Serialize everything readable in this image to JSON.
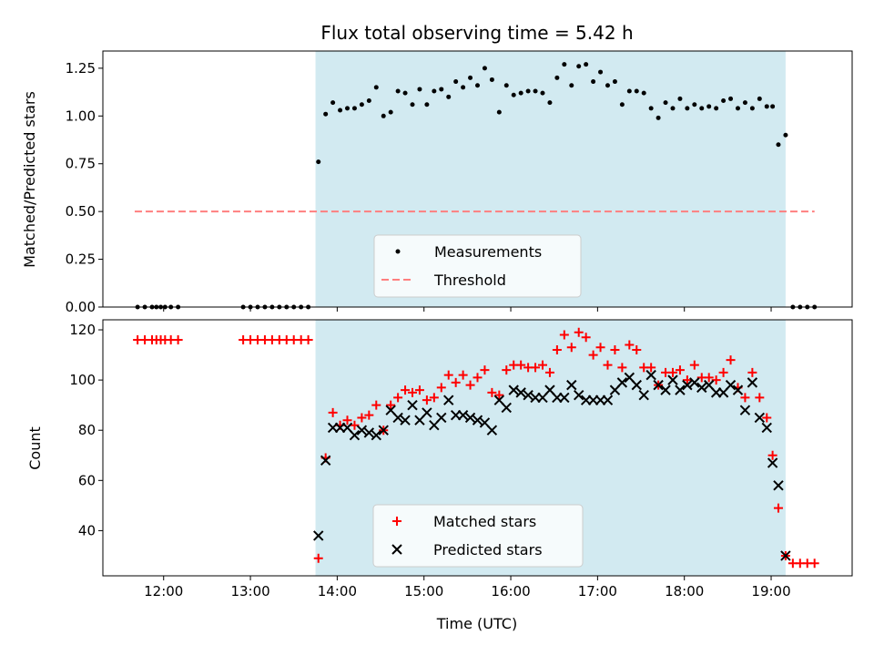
{
  "chart_data": [
    {
      "type": "scatter",
      "title": "Flux total observing time = 5.42 h",
      "xlabel": "",
      "ylabel": "Matched/Predicted stars",
      "xlim": [
        "11:18",
        "19:56"
      ],
      "ylim": [
        0,
        1.34
      ],
      "x_ticks": [
        "12:00",
        "13:00",
        "14:00",
        "15:00",
        "16:00",
        "17:00",
        "18:00",
        "19:00"
      ],
      "y_ticks": [
        "0.00",
        "0.25",
        "0.50",
        "0.75",
        "1.00",
        "1.25"
      ],
      "shaded_region": [
        "13:45",
        "19:10"
      ],
      "shaded_color": "#add8e6",
      "threshold": {
        "name": "Threshold",
        "y": 0.5,
        "x_range": [
          "11:40",
          "19:30"
        ],
        "color": "#ff7f7f",
        "style": "dashed"
      },
      "series": [
        {
          "name": "Measurements",
          "color": "#000000",
          "points": [
            [
              "11:42",
              0
            ],
            [
              "11:47",
              0
            ],
            [
              "11:52",
              0
            ],
            [
              "11:55",
              0
            ],
            [
              "11:58",
              0
            ],
            [
              "12:01",
              0
            ],
            [
              "12:05",
              0
            ],
            [
              "12:10",
              0
            ],
            [
              "12:55",
              0
            ],
            [
              "13:00",
              0
            ],
            [
              "13:05",
              0
            ],
            [
              "13:10",
              0
            ],
            [
              "13:15",
              0
            ],
            [
              "13:20",
              0
            ],
            [
              "13:25",
              0
            ],
            [
              "13:30",
              0
            ],
            [
              "13:35",
              0
            ],
            [
              "13:40",
              0
            ],
            [
              "13:47",
              0.76
            ],
            [
              "13:52",
              1.01
            ],
            [
              "13:57",
              1.07
            ],
            [
              "14:02",
              1.03
            ],
            [
              "14:07",
              1.04
            ],
            [
              "14:12",
              1.04
            ],
            [
              "14:17",
              1.06
            ],
            [
              "14:22",
              1.08
            ],
            [
              "14:27",
              1.15
            ],
            [
              "14:32",
              1.0
            ],
            [
              "14:37",
              1.02
            ],
            [
              "14:42",
              1.13
            ],
            [
              "14:47",
              1.12
            ],
            [
              "14:52",
              1.06
            ],
            [
              "14:57",
              1.14
            ],
            [
              "15:02",
              1.06
            ],
            [
              "15:07",
              1.13
            ],
            [
              "15:12",
              1.14
            ],
            [
              "15:17",
              1.1
            ],
            [
              "15:22",
              1.18
            ],
            [
              "15:27",
              1.15
            ],
            [
              "15:32",
              1.2
            ],
            [
              "15:37",
              1.16
            ],
            [
              "15:42",
              1.25
            ],
            [
              "15:47",
              1.19
            ],
            [
              "15:52",
              1.02
            ],
            [
              "15:57",
              1.16
            ],
            [
              "16:02",
              1.11
            ],
            [
              "16:07",
              1.12
            ],
            [
              "16:12",
              1.13
            ],
            [
              "16:17",
              1.13
            ],
            [
              "16:22",
              1.12
            ],
            [
              "16:27",
              1.07
            ],
            [
              "16:32",
              1.2
            ],
            [
              "16:37",
              1.27
            ],
            [
              "16:42",
              1.16
            ],
            [
              "16:47",
              1.26
            ],
            [
              "16:52",
              1.27
            ],
            [
              "16:57",
              1.18
            ],
            [
              "17:02",
              1.23
            ],
            [
              "17:07",
              1.16
            ],
            [
              "17:12",
              1.18
            ],
            [
              "17:17",
              1.06
            ],
            [
              "17:22",
              1.13
            ],
            [
              "17:27",
              1.13
            ],
            [
              "17:32",
              1.12
            ],
            [
              "17:37",
              1.04
            ],
            [
              "17:42",
              0.99
            ],
            [
              "17:47",
              1.07
            ],
            [
              "17:52",
              1.04
            ],
            [
              "17:57",
              1.09
            ],
            [
              "18:02",
              1.04
            ],
            [
              "18:07",
              1.06
            ],
            [
              "18:12",
              1.04
            ],
            [
              "18:17",
              1.05
            ],
            [
              "18:22",
              1.04
            ],
            [
              "18:27",
              1.08
            ],
            [
              "18:32",
              1.09
            ],
            [
              "18:37",
              1.04
            ],
            [
              "18:42",
              1.07
            ],
            [
              "18:47",
              1.04
            ],
            [
              "18:52",
              1.09
            ],
            [
              "18:57",
              1.05
            ],
            [
              "19:01",
              1.05
            ],
            [
              "19:05",
              0.85
            ],
            [
              "19:10",
              0.9
            ],
            [
              "19:15",
              0
            ],
            [
              "19:20",
              0
            ],
            [
              "19:25",
              0
            ],
            [
              "19:30",
              0
            ]
          ]
        }
      ],
      "legend": {
        "placement": "lower-center",
        "entries": [
          "Measurements",
          "Threshold"
        ]
      }
    },
    {
      "type": "scatter",
      "title": "",
      "xlabel": "Time (UTC)",
      "ylabel": "Count",
      "xlim": [
        "11:18",
        "19:56"
      ],
      "ylim": [
        22,
        124
      ],
      "x_ticks": [
        "12:00",
        "13:00",
        "14:00",
        "15:00",
        "16:00",
        "17:00",
        "18:00",
        "19:00"
      ],
      "y_ticks": [
        "40",
        "60",
        "80",
        "100",
        "120"
      ],
      "shaded_region": [
        "13:45",
        "19:10"
      ],
      "shaded_color": "#add8e6",
      "series": [
        {
          "name": "Matched stars",
          "marker": "plus",
          "color": "#ff0000",
          "points": [
            [
              "11:42",
              116
            ],
            [
              "11:47",
              116
            ],
            [
              "11:52",
              116
            ],
            [
              "11:55",
              116
            ],
            [
              "11:58",
              116
            ],
            [
              "12:01",
              116
            ],
            [
              "12:05",
              116
            ],
            [
              "12:10",
              116
            ],
            [
              "12:55",
              116
            ],
            [
              "13:00",
              116
            ],
            [
              "13:05",
              116
            ],
            [
              "13:10",
              116
            ],
            [
              "13:15",
              116
            ],
            [
              "13:20",
              116
            ],
            [
              "13:25",
              116
            ],
            [
              "13:30",
              116
            ],
            [
              "13:35",
              116
            ],
            [
              "13:40",
              116
            ],
            [
              "13:47",
              29
            ],
            [
              "13:52",
              69
            ],
            [
              "13:57",
              87
            ],
            [
              "14:02",
              82
            ],
            [
              "14:07",
              84
            ],
            [
              "14:12",
              82
            ],
            [
              "14:17",
              85
            ],
            [
              "14:22",
              86
            ],
            [
              "14:27",
              90
            ],
            [
              "14:32",
              80
            ],
            [
              "14:37",
              90
            ],
            [
              "14:42",
              93
            ],
            [
              "14:47",
              96
            ],
            [
              "14:52",
              95
            ],
            [
              "14:57",
              96
            ],
            [
              "15:02",
              92
            ],
            [
              "15:07",
              93
            ],
            [
              "15:12",
              97
            ],
            [
              "15:17",
              102
            ],
            [
              "15:22",
              99
            ],
            [
              "15:27",
              102
            ],
            [
              "15:32",
              98
            ],
            [
              "15:37",
              101
            ],
            [
              "15:42",
              104
            ],
            [
              "15:47",
              95
            ],
            [
              "15:52",
              94
            ],
            [
              "15:57",
              104
            ],
            [
              "16:02",
              106
            ],
            [
              "16:07",
              106
            ],
            [
              "16:12",
              105
            ],
            [
              "16:17",
              105
            ],
            [
              "16:22",
              106
            ],
            [
              "16:27",
              103
            ],
            [
              "16:32",
              112
            ],
            [
              "16:37",
              118
            ],
            [
              "16:42",
              113
            ],
            [
              "16:47",
              119
            ],
            [
              "16:52",
              117
            ],
            [
              "16:57",
              110
            ],
            [
              "17:02",
              113
            ],
            [
              "17:07",
              106
            ],
            [
              "17:12",
              112
            ],
            [
              "17:17",
              105
            ],
            [
              "17:22",
              114
            ],
            [
              "17:27",
              112
            ],
            [
              "17:32",
              105
            ],
            [
              "17:37",
              105
            ],
            [
              "17:42",
              98
            ],
            [
              "17:47",
              103
            ],
            [
              "17:52",
              103
            ],
            [
              "17:57",
              104
            ],
            [
              "18:02",
              100
            ],
            [
              "18:07",
              106
            ],
            [
              "18:12",
              101
            ],
            [
              "18:17",
              101
            ],
            [
              "18:22",
              100
            ],
            [
              "18:27",
              103
            ],
            [
              "18:32",
              108
            ],
            [
              "18:37",
              97
            ],
            [
              "18:42",
              93
            ],
            [
              "18:47",
              103
            ],
            [
              "18:52",
              93
            ],
            [
              "18:57",
              85
            ],
            [
              "19:01",
              70
            ],
            [
              "19:05",
              49
            ],
            [
              "19:10",
              30
            ],
            [
              "19:15",
              27
            ],
            [
              "19:20",
              27
            ],
            [
              "19:25",
              27
            ],
            [
              "19:30",
              27
            ]
          ]
        },
        {
          "name": "Predicted stars",
          "marker": "x",
          "color": "#000000",
          "points": [
            [
              "13:47",
              38
            ],
            [
              "13:52",
              68
            ],
            [
              "13:57",
              81
            ],
            [
              "14:02",
              81
            ],
            [
              "14:07",
              81
            ],
            [
              "14:12",
              78
            ],
            [
              "14:17",
              80
            ],
            [
              "14:22",
              79
            ],
            [
              "14:27",
              78
            ],
            [
              "14:32",
              80
            ],
            [
              "14:37",
              88
            ],
            [
              "14:42",
              85
            ],
            [
              "14:47",
              84
            ],
            [
              "14:52",
              90
            ],
            [
              "14:57",
              84
            ],
            [
              "15:02",
              87
            ],
            [
              "15:07",
              82
            ],
            [
              "15:12",
              85
            ],
            [
              "15:17",
              92
            ],
            [
              "15:22",
              86
            ],
            [
              "15:27",
              86
            ],
            [
              "15:32",
              85
            ],
            [
              "15:37",
              84
            ],
            [
              "15:42",
              83
            ],
            [
              "15:47",
              80
            ],
            [
              "15:52",
              92
            ],
            [
              "15:57",
              89
            ],
            [
              "16:02",
              96
            ],
            [
              "16:07",
              95
            ],
            [
              "16:12",
              94
            ],
            [
              "16:17",
              93
            ],
            [
              "16:22",
              93
            ],
            [
              "16:27",
              96
            ],
            [
              "16:32",
              93
            ],
            [
              "16:37",
              93
            ],
            [
              "16:42",
              98
            ],
            [
              "16:47",
              94
            ],
            [
              "16:52",
              92
            ],
            [
              "16:57",
              92
            ],
            [
              "17:02",
              92
            ],
            [
              "17:07",
              92
            ],
            [
              "17:12",
              96
            ],
            [
              "17:17",
              99
            ],
            [
              "17:22",
              101
            ],
            [
              "17:27",
              98
            ],
            [
              "17:32",
              94
            ],
            [
              "17:37",
              102
            ],
            [
              "17:42",
              98
            ],
            [
              "17:47",
              96
            ],
            [
              "17:52",
              100
            ],
            [
              "17:57",
              96
            ],
            [
              "18:02",
              98
            ],
            [
              "18:07",
              99
            ],
            [
              "18:12",
              97
            ],
            [
              "18:17",
              98
            ],
            [
              "18:22",
              95
            ],
            [
              "18:27",
              95
            ],
            [
              "18:32",
              98
            ],
            [
              "18:37",
              96
            ],
            [
              "18:42",
              88
            ],
            [
              "18:47",
              99
            ],
            [
              "18:52",
              85
            ],
            [
              "18:57",
              81
            ],
            [
              "19:01",
              67
            ],
            [
              "19:05",
              58
            ],
            [
              "19:10",
              30
            ]
          ]
        }
      ],
      "legend": {
        "placement": "lower-center",
        "entries": [
          "Matched stars",
          "Predicted stars"
        ]
      }
    }
  ]
}
